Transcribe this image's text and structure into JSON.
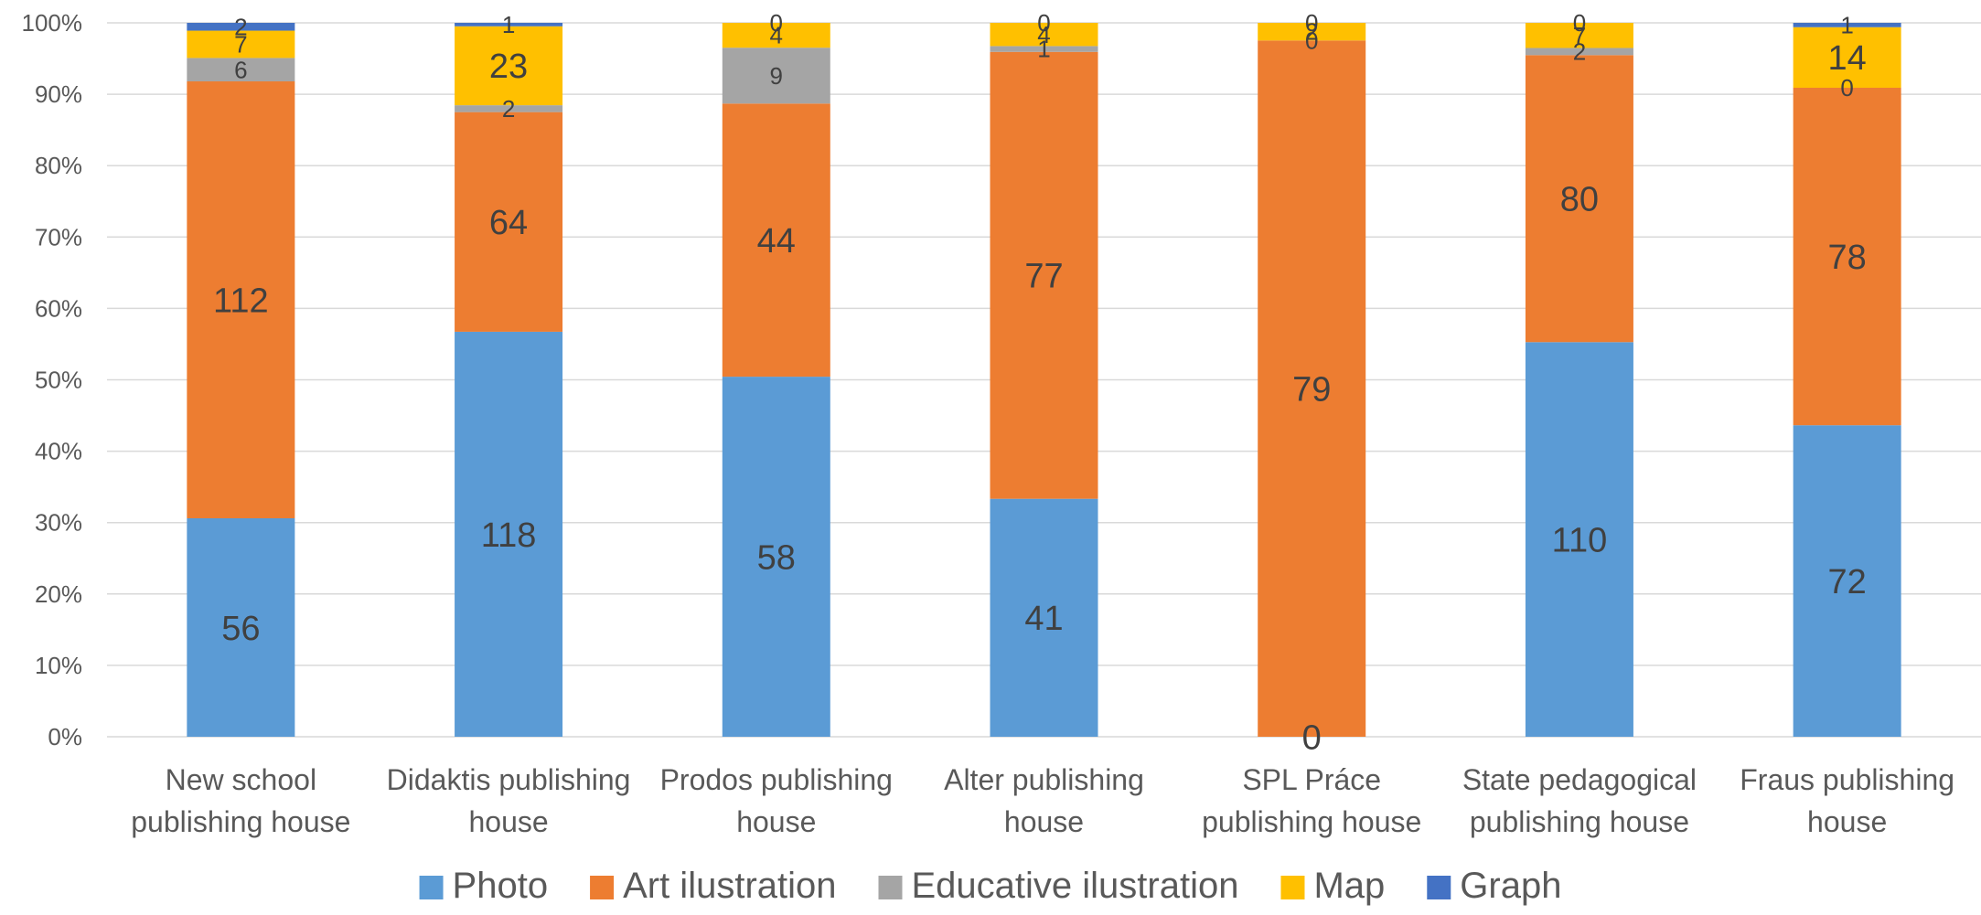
{
  "chart_data": {
    "type": "bar",
    "stacked": "percent",
    "categories": [
      [
        "New school",
        "publishing house"
      ],
      [
        "Didaktis publishing",
        "house"
      ],
      [
        "Prodos publishing",
        "house"
      ],
      [
        "Alter publishing",
        "house"
      ],
      [
        "SPL Práce",
        "publishing house"
      ],
      [
        "State pedagogical",
        "publishing house"
      ],
      [
        "Fraus publishing",
        "house"
      ]
    ],
    "series": [
      {
        "name": "Photo",
        "color": "#5B9BD5",
        "values": [
          56,
          118,
          58,
          41,
          0,
          110,
          72
        ]
      },
      {
        "name": "Art ilustration",
        "color": "#ED7D31",
        "values": [
          112,
          64,
          44,
          77,
          79,
          80,
          78
        ]
      },
      {
        "name": "Educative ilustration",
        "color": "#A5A5A5",
        "values": [
          6,
          2,
          9,
          1,
          0,
          2,
          0
        ]
      },
      {
        "name": "Map",
        "color": "#FFC000",
        "values": [
          7,
          23,
          4,
          4,
          2,
          7,
          14
        ]
      },
      {
        "name": "Graph",
        "color": "#4472C4",
        "values": [
          2,
          1,
          0,
          0,
          0,
          0,
          1
        ]
      }
    ],
    "yticks": [
      "0%",
      "10%",
      "20%",
      "30%",
      "40%",
      "50%",
      "60%",
      "70%",
      "80%",
      "90%",
      "100%"
    ],
    "ylim": [
      0,
      100
    ],
    "grid": true,
    "legend_position": "bottom"
  }
}
